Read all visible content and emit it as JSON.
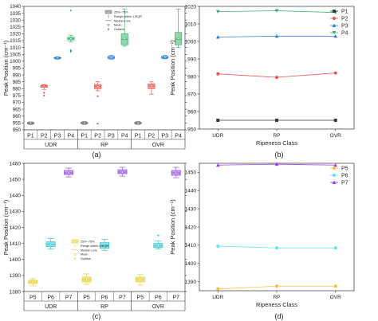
{
  "panels": [
    {
      "id": "a",
      "label": "(a)"
    },
    {
      "id": "b",
      "label": "(b)"
    },
    {
      "id": "c",
      "label": "(c)"
    },
    {
      "id": "d",
      "label": "(d)"
    }
  ],
  "chart_data": [
    {
      "panel": "a",
      "type": "box",
      "ylabel": "Peak Position (cm⁻¹)",
      "ylim": [
        950,
        1040
      ],
      "yticks": [
        950,
        955,
        960,
        965,
        970,
        975,
        980,
        985,
        990,
        995,
        1000,
        1005,
        1010,
        1015,
        1020,
        1025,
        1030,
        1035,
        1040
      ],
      "groups": [
        "UDR",
        "RP",
        "OVR"
      ],
      "categories": [
        "P1",
        "P2",
        "P3",
        "P4"
      ],
      "legend": [
        "25%~75%",
        "Range within 1.5IQR",
        "Median Line",
        "Mean",
        "Outliers"
      ],
      "colors": {
        "P1": "#6e6e6e",
        "P2": "#e8534f",
        "P3": "#2f7fd8",
        "P4": "#39b36f"
      },
      "boxes": [
        {
          "group": "UDR",
          "series": "P1",
          "min": 954.0,
          "q1": 954.5,
          "median": 955.0,
          "q3": 955.3,
          "max": 955.8,
          "mean": 955.0,
          "outliers": []
        },
        {
          "group": "UDR",
          "series": "P2",
          "min": 979.5,
          "q1": 981.0,
          "median": 982.0,
          "q3": 982.5,
          "max": 983.0,
          "mean": 982.0,
          "outliers": [
            975.0,
            977.0
          ]
        },
        {
          "group": "UDR",
          "series": "P3",
          "min": 1001.5,
          "q1": 1002.0,
          "median": 1002.5,
          "q3": 1002.8,
          "max": 1003.3,
          "mean": 1002.5,
          "outliers": []
        },
        {
          "group": "UDR",
          "series": "P4",
          "min": 1014.0,
          "q1": 1015.5,
          "median": 1016.5,
          "q3": 1017.5,
          "max": 1019.0,
          "mean": 1016.5,
          "outliers": [
            1007.0,
            1008.0,
            1037.0
          ]
        },
        {
          "group": "RP",
          "series": "P1",
          "min": 954.0,
          "q1": 954.5,
          "median": 955.0,
          "q3": 955.5,
          "max": 956.0,
          "mean": 955.0,
          "outliers": []
        },
        {
          "group": "RP",
          "series": "P2",
          "min": 978.5,
          "q1": 980.0,
          "median": 981.5,
          "q3": 983.0,
          "max": 985.0,
          "mean": 981.5,
          "outliers": [
            954.5,
            974.5
          ]
        },
        {
          "group": "RP",
          "series": "P3",
          "min": 1001.5,
          "q1": 1002.0,
          "median": 1002.8,
          "q3": 1003.5,
          "max": 1004.2,
          "mean": 1002.8,
          "outliers": []
        },
        {
          "group": "RP",
          "series": "P4",
          "min": 1011.0,
          "q1": 1012.0,
          "median": 1016.0,
          "q3": 1020.0,
          "max": 1038.0,
          "mean": 1016.5,
          "outliers": []
        },
        {
          "group": "OVR",
          "series": "P1",
          "min": 954.0,
          "q1": 954.5,
          "median": 955.0,
          "q3": 955.5,
          "max": 956.0,
          "mean": 955.0,
          "outliers": []
        },
        {
          "group": "OVR",
          "series": "P2",
          "min": 976.0,
          "q1": 980.0,
          "median": 982.0,
          "q3": 983.5,
          "max": 985.0,
          "mean": 982.0,
          "outliers": []
        },
        {
          "group": "OVR",
          "series": "P3",
          "min": 1001.8,
          "q1": 1002.2,
          "median": 1002.8,
          "q3": 1003.5,
          "max": 1004.2,
          "mean": 1003.0,
          "outliers": []
        },
        {
          "group": "OVR",
          "series": "P4",
          "min": 1010.0,
          "q1": 1012.0,
          "median": 1016.0,
          "q3": 1021.0,
          "max": 1038.0,
          "mean": 1016.5,
          "outliers": []
        }
      ]
    },
    {
      "panel": "b",
      "type": "line",
      "xlabel": "Ripeness Class",
      "ylabel": "Peak Position (cm⁻¹)",
      "ylim": [
        950,
        1020
      ],
      "yticks": [
        950,
        960,
        970,
        980,
        990,
        1000,
        1010,
        1020
      ],
      "categories": [
        "UDR",
        "RP",
        "OVR"
      ],
      "legend_position": "top-right",
      "series": [
        {
          "name": "P1",
          "values": [
            955.0,
            955.0,
            955.0
          ],
          "color": "#3a3a3a",
          "marker": "square"
        },
        {
          "name": "P2",
          "values": [
            981.5,
            979.5,
            982.0
          ],
          "color": "#e8534f",
          "marker": "circle"
        },
        {
          "name": "P3",
          "values": [
            1002.5,
            1003.0,
            1003.0
          ],
          "color": "#2f7fd8",
          "marker": "triangle-up"
        },
        {
          "name": "P4",
          "values": [
            1017.0,
            1017.5,
            1016.5
          ],
          "color": "#39b36f",
          "marker": "triangle-down"
        }
      ]
    },
    {
      "panel": "c",
      "type": "box",
      "ylabel": "Peak Position (cm⁻¹)",
      "ylim": [
        1380,
        1460
      ],
      "yticks": [
        1380,
        1390,
        1400,
        1410,
        1420,
        1430,
        1440,
        1450,
        1460
      ],
      "groups": [
        "UDR",
        "RP",
        "OVR"
      ],
      "categories": [
        "P5",
        "P6",
        "P7"
      ],
      "legend": [
        "25%~75%",
        "Range within 1.5IQR",
        "Median Line",
        "Mean",
        "Outliers"
      ],
      "colors": {
        "P5": "#e2d12f",
        "P6": "#2fc9d6",
        "P7": "#9650e0"
      },
      "boxes": [
        {
          "group": "UDR",
          "series": "P5",
          "min": 1383.5,
          "q1": 1385.0,
          "median": 1386.0,
          "q3": 1387.0,
          "max": 1388.0,
          "mean": 1386.0,
          "outliers": []
        },
        {
          "group": "UDR",
          "series": "P6",
          "min": 1406.5,
          "q1": 1408.0,
          "median": 1409.5,
          "q3": 1411.0,
          "max": 1413.0,
          "mean": 1409.5,
          "outliers": []
        },
        {
          "group": "UDR",
          "series": "P7",
          "min": 1451.5,
          "q1": 1453.0,
          "median": 1454.0,
          "q3": 1455.5,
          "max": 1457.0,
          "mean": 1454.0,
          "outliers": []
        },
        {
          "group": "RP",
          "series": "P5",
          "min": 1384.5,
          "q1": 1386.0,
          "median": 1387.5,
          "q3": 1389.0,
          "max": 1391.0,
          "mean": 1387.5,
          "outliers": []
        },
        {
          "group": "RP",
          "series": "P6",
          "min": 1405.5,
          "q1": 1407.0,
          "median": 1408.5,
          "q3": 1410.5,
          "max": 1412.5,
          "mean": 1408.5,
          "outliers": []
        },
        {
          "group": "RP",
          "series": "P7",
          "min": 1452.0,
          "q1": 1453.5,
          "median": 1454.5,
          "q3": 1456.0,
          "max": 1457.5,
          "mean": 1454.5,
          "outliers": []
        },
        {
          "group": "OVR",
          "series": "P5",
          "min": 1384.0,
          "q1": 1386.0,
          "median": 1387.5,
          "q3": 1389.0,
          "max": 1390.5,
          "mean": 1387.5,
          "outliers": []
        },
        {
          "group": "OVR",
          "series": "P6",
          "min": 1406.5,
          "q1": 1407.5,
          "median": 1408.5,
          "q3": 1410.0,
          "max": 1411.5,
          "mean": 1408.5,
          "outliers": [
            1415.0
          ]
        },
        {
          "group": "OVR",
          "series": "P7",
          "min": 1451.0,
          "q1": 1452.5,
          "median": 1454.0,
          "q3": 1455.5,
          "max": 1457.5,
          "mean": 1454.0,
          "outliers": []
        }
      ]
    },
    {
      "panel": "d",
      "type": "line",
      "xlabel": "Ripeness Class",
      "ylabel": "Peak Position (cm⁻¹)",
      "ylim": [
        1385,
        1455
      ],
      "yticks": [
        1390,
        1400,
        1410,
        1420,
        1430,
        1440,
        1450
      ],
      "categories": [
        "UDR",
        "RP",
        "OVR"
      ],
      "legend_position": "top-right",
      "series": [
        {
          "name": "P5",
          "values": [
            1386.0,
            1387.5,
            1387.5
          ],
          "color": "#f2c23a",
          "marker": "circle"
        },
        {
          "name": "P6",
          "values": [
            1409.5,
            1408.5,
            1408.5
          ],
          "color": "#5fe3ee",
          "marker": "circle"
        },
        {
          "name": "P7",
          "values": [
            1454.0,
            1454.5,
            1454.0
          ],
          "color": "#9a3cf0",
          "marker": "triangle-up"
        }
      ]
    }
  ]
}
